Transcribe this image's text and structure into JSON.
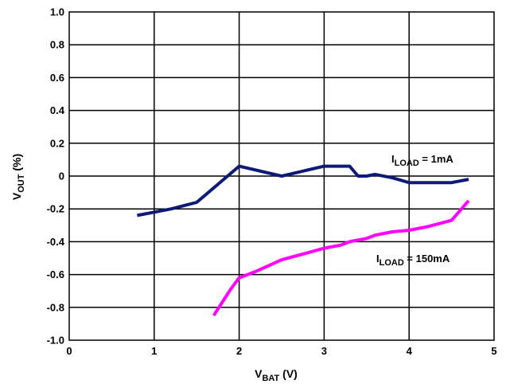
{
  "chart_data": {
    "type": "line",
    "x_label": {
      "main": "V",
      "sub": "BAT",
      "suffix": " (V)"
    },
    "y_label": {
      "main": "V",
      "sub": "OUT",
      "suffix": " (%)"
    },
    "xlim": [
      0,
      5
    ],
    "ylim": [
      -1.0,
      1.0
    ],
    "x_ticks": [
      0,
      1,
      2,
      3,
      4,
      5
    ],
    "x_tick_labels": [
      "0",
      "1",
      "2",
      "3",
      "4",
      "5"
    ],
    "y_ticks": [
      1.0,
      0.8,
      0.6,
      0.4,
      0.2,
      0,
      -0.2,
      -0.4,
      -0.6,
      -0.8,
      -1.0
    ],
    "y_tick_labels": [
      "1.0",
      "0.8",
      "0.6",
      "0.4",
      "0.2",
      "0",
      "-0.2",
      "-0.4",
      "-0.6",
      "-0.8",
      "-1.0"
    ],
    "grid": true,
    "series": [
      {
        "id": "iload-1ma",
        "label": {
          "main": "I",
          "sub": "LOAD",
          "suffix": " = 1mA"
        },
        "color": "#0d1a78",
        "x": [
          0.8,
          1.0,
          1.2,
          1.5,
          2.0,
          2.5,
          3.0,
          3.1,
          3.2,
          3.3,
          3.4,
          3.5,
          3.6,
          3.8,
          4.0,
          4.2,
          4.5,
          4.7
        ],
        "y": [
          -0.24,
          -0.22,
          -0.2,
          -0.16,
          0.06,
          0.0,
          0.06,
          0.06,
          0.06,
          0.06,
          0.0,
          0.0,
          0.01,
          -0.01,
          -0.04,
          -0.04,
          -0.04,
          -0.02
        ]
      },
      {
        "id": "iload-150ma",
        "label": {
          "main": "I",
          "sub": "LOAD",
          "suffix": " = 150mA"
        },
        "color": "#ff00ff",
        "x": [
          1.7,
          1.8,
          1.9,
          2.0,
          2.2,
          2.5,
          3.0,
          3.2,
          3.3,
          3.4,
          3.5,
          3.6,
          3.8,
          4.0,
          4.2,
          4.5,
          4.6,
          4.7
        ],
        "y": [
          -0.85,
          -0.77,
          -0.69,
          -0.62,
          -0.58,
          -0.51,
          -0.44,
          -0.42,
          -0.4,
          -0.39,
          -0.38,
          -0.36,
          -0.34,
          -0.33,
          -0.31,
          -0.27,
          -0.21,
          -0.15
        ]
      }
    ]
  }
}
